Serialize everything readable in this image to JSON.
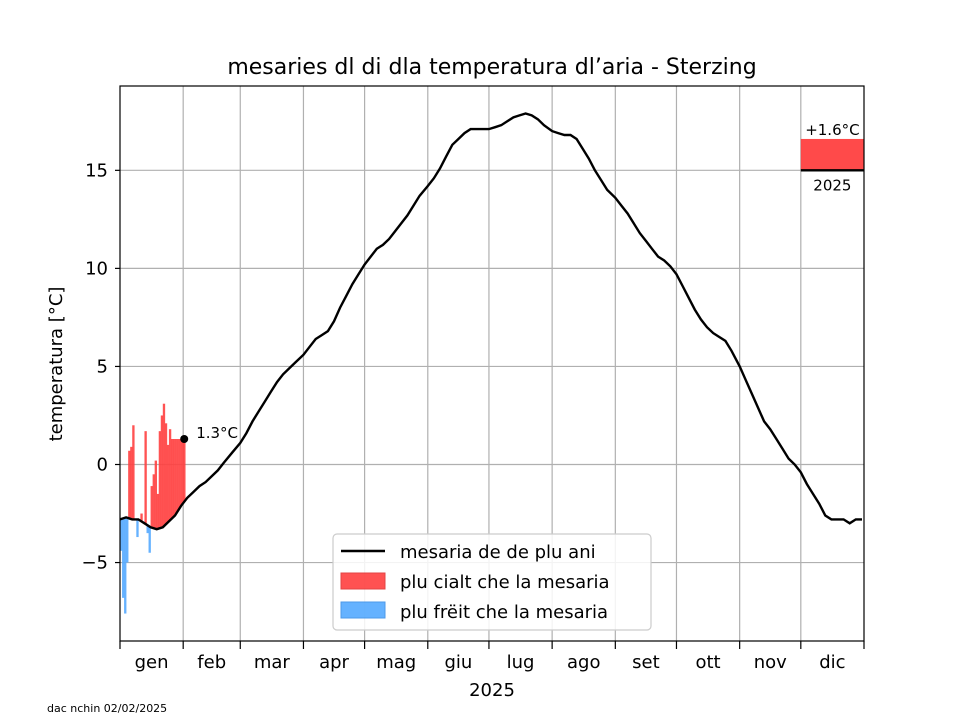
{
  "chart_data": {
    "type": "line",
    "title": "mesaries dl di dla temperatura dl’aria - Sterzing",
    "xlabel": "2025",
    "ylabel": "temperatura [°C]",
    "ylim": [
      -9,
      19.3
    ],
    "yticks": [
      -5,
      0,
      5,
      10,
      15
    ],
    "ytick_labels": [
      "−5",
      "0",
      "5",
      "10",
      "15"
    ],
    "months": [
      "gen",
      "feb",
      "mar",
      "apr",
      "mag",
      "giu",
      "lug",
      "ago",
      "set",
      "ott",
      "nov",
      "dic"
    ],
    "month_start_days": [
      0,
      31,
      59,
      90,
      120,
      151,
      181,
      212,
      243,
      273,
      304,
      334,
      365
    ],
    "colors": {
      "mean": "#000000",
      "warm": "#ff4040",
      "cold": "#55aaff"
    },
    "series": [
      {
        "name": "mesaria de de plu ani",
        "kind": "climatology",
        "points": [
          [
            0,
            -2.8
          ],
          [
            3,
            -2.7
          ],
          [
            6,
            -2.8
          ],
          [
            9,
            -2.8
          ],
          [
            12,
            -3.0
          ],
          [
            15,
            -3.2
          ],
          [
            18,
            -3.3
          ],
          [
            21,
            -3.2
          ],
          [
            24,
            -2.9
          ],
          [
            27,
            -2.6
          ],
          [
            30,
            -2.1
          ],
          [
            33,
            -1.7
          ],
          [
            36,
            -1.4
          ],
          [
            39,
            -1.1
          ],
          [
            42,
            -0.9
          ],
          [
            45,
            -0.6
          ],
          [
            48,
            -0.3
          ],
          [
            51,
            0.1
          ],
          [
            55,
            0.6
          ],
          [
            59,
            1.1
          ],
          [
            62,
            1.6
          ],
          [
            65,
            2.2
          ],
          [
            68,
            2.7
          ],
          [
            71,
            3.2
          ],
          [
            74,
            3.7
          ],
          [
            77,
            4.2
          ],
          [
            80,
            4.6
          ],
          [
            83,
            4.9
          ],
          [
            86,
            5.2
          ],
          [
            90,
            5.6
          ],
          [
            93,
            6.0
          ],
          [
            96,
            6.4
          ],
          [
            99,
            6.6
          ],
          [
            102,
            6.8
          ],
          [
            105,
            7.3
          ],
          [
            108,
            8.0
          ],
          [
            111,
            8.6
          ],
          [
            114,
            9.2
          ],
          [
            117,
            9.7
          ],
          [
            120,
            10.2
          ],
          [
            123,
            10.6
          ],
          [
            126,
            11.0
          ],
          [
            129,
            11.2
          ],
          [
            132,
            11.5
          ],
          [
            135,
            11.9
          ],
          [
            138,
            12.3
          ],
          [
            141,
            12.7
          ],
          [
            144,
            13.2
          ],
          [
            147,
            13.7
          ],
          [
            151,
            14.2
          ],
          [
            154,
            14.6
          ],
          [
            157,
            15.1
          ],
          [
            160,
            15.7
          ],
          [
            163,
            16.3
          ],
          [
            166,
            16.6
          ],
          [
            169,
            16.9
          ],
          [
            172,
            17.1
          ],
          [
            175,
            17.1
          ],
          [
            178,
            17.1
          ],
          [
            181,
            17.1
          ],
          [
            184,
            17.2
          ],
          [
            187,
            17.3
          ],
          [
            190,
            17.5
          ],
          [
            193,
            17.7
          ],
          [
            196,
            17.8
          ],
          [
            199,
            17.9
          ],
          [
            202,
            17.8
          ],
          [
            205,
            17.6
          ],
          [
            208,
            17.3
          ],
          [
            212,
            17.0
          ],
          [
            215,
            16.9
          ],
          [
            218,
            16.8
          ],
          [
            221,
            16.8
          ],
          [
            224,
            16.6
          ],
          [
            227,
            16.1
          ],
          [
            230,
            15.6
          ],
          [
            233,
            15.0
          ],
          [
            236,
            14.5
          ],
          [
            239,
            14.0
          ],
          [
            243,
            13.6
          ],
          [
            246,
            13.2
          ],
          [
            249,
            12.8
          ],
          [
            252,
            12.3
          ],
          [
            255,
            11.8
          ],
          [
            258,
            11.4
          ],
          [
            261,
            11.0
          ],
          [
            264,
            10.6
          ],
          [
            267,
            10.4
          ],
          [
            270,
            10.1
          ],
          [
            273,
            9.7
          ],
          [
            276,
            9.1
          ],
          [
            279,
            8.5
          ],
          [
            282,
            7.9
          ],
          [
            285,
            7.4
          ],
          [
            288,
            7.0
          ],
          [
            291,
            6.7
          ],
          [
            294,
            6.5
          ],
          [
            297,
            6.3
          ],
          [
            300,
            5.8
          ],
          [
            304,
            5.0
          ],
          [
            307,
            4.3
          ],
          [
            310,
            3.6
          ],
          [
            313,
            2.9
          ],
          [
            316,
            2.2
          ],
          [
            319,
            1.8
          ],
          [
            322,
            1.3
          ],
          [
            325,
            0.8
          ],
          [
            328,
            0.3
          ],
          [
            331,
            0.0
          ],
          [
            334,
            -0.4
          ],
          [
            337,
            -1.0
          ],
          [
            340,
            -1.5
          ],
          [
            343,
            -2.0
          ],
          [
            346,
            -2.6
          ],
          [
            349,
            -2.8
          ],
          [
            352,
            -2.8
          ],
          [
            355,
            -2.8
          ],
          [
            358,
            -3.0
          ],
          [
            361,
            -2.8
          ],
          [
            364,
            -2.8
          ]
        ]
      },
      {
        "name": "plu cialt che la mesaria",
        "kind": "warm-anomaly",
        "days": [
          0,
          1,
          2,
          3,
          4,
          5,
          6,
          7,
          8,
          9,
          10,
          11,
          12,
          13,
          14,
          15,
          16,
          17,
          18,
          19,
          20,
          21,
          22,
          23,
          24,
          25,
          26,
          27,
          28,
          29,
          30,
          31
        ],
        "values": [
          -4.4,
          -6.8,
          -7.6,
          -5.0,
          0.7,
          0.9,
          2.0,
          -2.8,
          -3.7,
          -2.8,
          -2.5,
          -3.0,
          1.7,
          -3.5,
          -4.5,
          -1.1,
          -0.5,
          0.2,
          -1.5,
          1.7,
          2.5,
          3.1,
          2.1,
          1.0,
          1.8,
          1.3,
          1.3,
          1.3,
          1.3,
          1.3,
          1.3,
          1.3
        ]
      },
      {
        "name": "plu frëit che la mesaria",
        "kind": "cold-anomaly"
      }
    ],
    "last_point": {
      "day": 31,
      "value": 1.3,
      "label": "1.3°C"
    },
    "yearly_anomaly": {
      "label": "+1.6°C",
      "year_label": "2025",
      "baseline": 15.0,
      "value": 1.6
    },
    "footer": "dac nchin 02/02/2025"
  }
}
